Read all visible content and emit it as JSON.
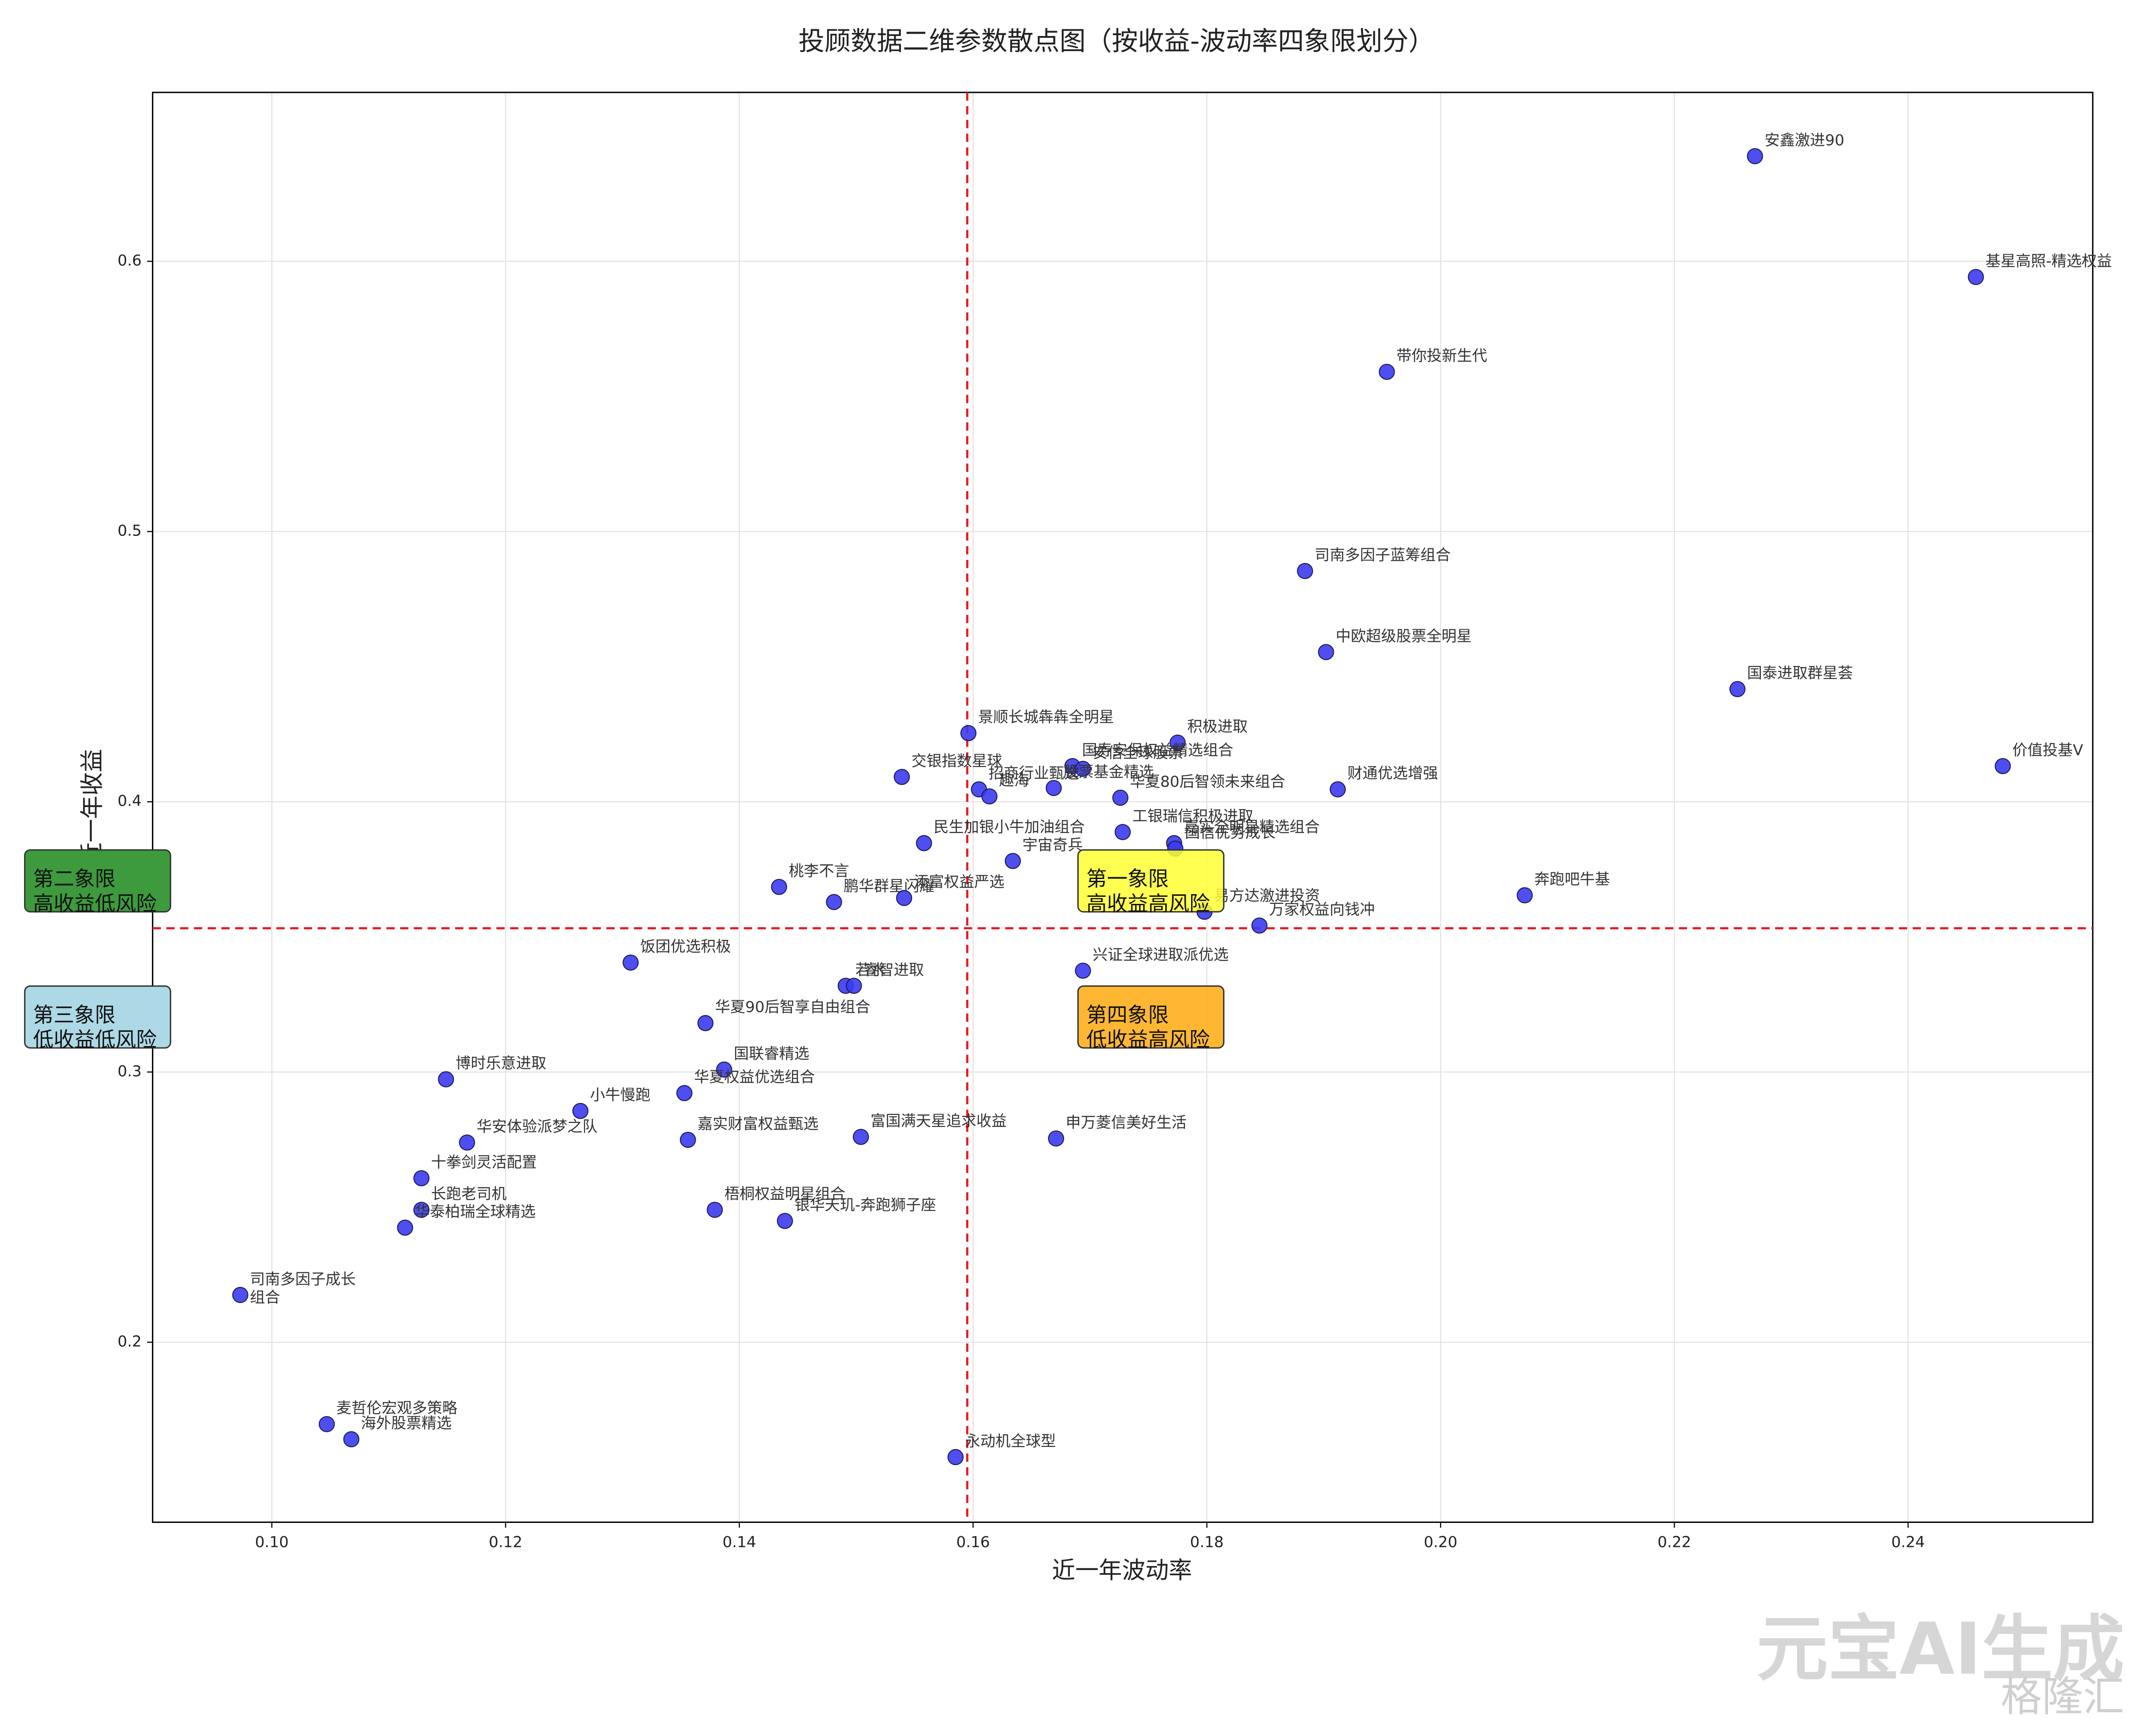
{
  "chart_data": {
    "type": "scatter",
    "title": "投顾数据二维参数散点图（按收益-波动率四象限划分）",
    "x_label": "近一年波动率",
    "y_label": "近一年收益",
    "xlim": [
      0.0898,
      0.2558
    ],
    "ylim": [
      0.1334,
      0.6625
    ],
    "xticks": [
      {
        "value": 0.1,
        "label": "0.10"
      },
      {
        "value": 0.12,
        "label": "0.12"
      },
      {
        "value": 0.14,
        "label": "0.14"
      },
      {
        "value": 0.16,
        "label": "0.16"
      },
      {
        "value": 0.18,
        "label": "0.18"
      },
      {
        "value": 0.2,
        "label": "0.20"
      },
      {
        "value": 0.22,
        "label": "0.22"
      },
      {
        "value": 0.24,
        "label": "0.24"
      }
    ],
    "yticks": [
      0.2,
      0.3,
      0.4,
      0.5,
      0.6
    ],
    "grid": true,
    "color": "#3b3bf0",
    "reference_x": 0.1595,
    "reference_y": 0.3532,
    "reference_color": "#e8191e",
    "labels": [
      "安鑫激进90",
      "基星高照-精选权益",
      "带你投新生代",
      "司南多因子蓝筹组合",
      "中欧超级股票全明星",
      "国泰进取群星荟",
      "价值投基V",
      "景顺长城犇犇全明星",
      "积极进取",
      "国寿安保权益精选组合",
      "安信全球股票",
      "交银指数星球",
      "招商行业甄选",
      "趣海",
      "股票基金精选",
      "华夏80后智领未来组合",
      "财通优选增强",
      "工银瑞信积极进取",
      "民生加银小牛加油组合",
      "嘉实全明星精选组合",
      "国信优势成长",
      "宇宙奇兵",
      "桃李不言",
      "鹏华群星闪耀",
      "添富权益严选",
      "易方达激进投资",
      "万家权益向钱冲",
      "奔跑吧牛基",
      "兴证全球进取派优选",
      "饭团优选积极",
      "若水",
      "睿智进取",
      "华夏90后智享自由组合",
      "国联睿精选",
      "华夏权益优选组合",
      "博时乐意进取",
      "小牛慢跑",
      "华安体验派梦之队",
      "嘉实财富权益甄选",
      "富国满天星追求收益",
      "申万菱信美好生活",
      "十拳剑灵活配置",
      "长跑老司机",
      "华泰柏瑞全球精选",
      "梧桐权益明星组合",
      "银华天玑-奔跑狮子座",
      "司南多因子成长\n组合",
      "麦哲伦宏观多策略",
      "海外股票精选",
      "永动机全球型"
    ],
    "x": [
      0.2269,
      0.2458,
      0.1954,
      0.1884,
      0.1902,
      0.2254,
      0.2481,
      0.1596,
      0.1775,
      0.1685,
      0.1694,
      0.1539,
      0.1605,
      0.1614,
      0.1669,
      0.1726,
      0.1912,
      0.1728,
      0.1558,
      0.1772,
      0.1773,
      0.1634,
      0.1434,
      0.1481,
      0.1541,
      0.1798,
      0.1845,
      0.2072,
      0.1694,
      0.1307,
      0.1491,
      0.1498,
      0.1371,
      0.1387,
      0.1353,
      0.1149,
      0.1264,
      0.1167,
      0.1356,
      0.1504,
      0.1671,
      0.1128,
      0.1128,
      0.1114,
      0.1379,
      0.1439,
      0.0973,
      0.1047,
      0.1068,
      0.1585
    ],
    "values": [
      0.6389,
      0.5942,
      0.5591,
      0.4854,
      0.4554,
      0.4417,
      0.4132,
      0.4254,
      0.4219,
      0.4132,
      0.4122,
      0.4092,
      0.4046,
      0.402,
      0.4051,
      0.4015,
      0.4046,
      0.3888,
      0.3847,
      0.3847,
      0.3827,
      0.3781,
      0.3685,
      0.3629,
      0.3644,
      0.3593,
      0.3542,
      0.3654,
      0.3375,
      0.3405,
      0.3319,
      0.3319,
      0.3181,
      0.3009,
      0.2922,
      0.2973,
      0.2856,
      0.2739,
      0.2749,
      0.276,
      0.2754,
      0.2607,
      0.249,
      0.2424,
      0.249,
      0.2449,
      0.2175,
      0.1697,
      0.1641,
      0.1575
    ],
    "annotations": [
      "第一象限\n高收益高风险",
      "第二象限\n高收益低风险",
      "第三象限\n低收益低风险",
      "第四象限\n低收益高风险"
    ],
    "watermark": [
      "元宝AI生成",
      "格隆汇"
    ]
  }
}
